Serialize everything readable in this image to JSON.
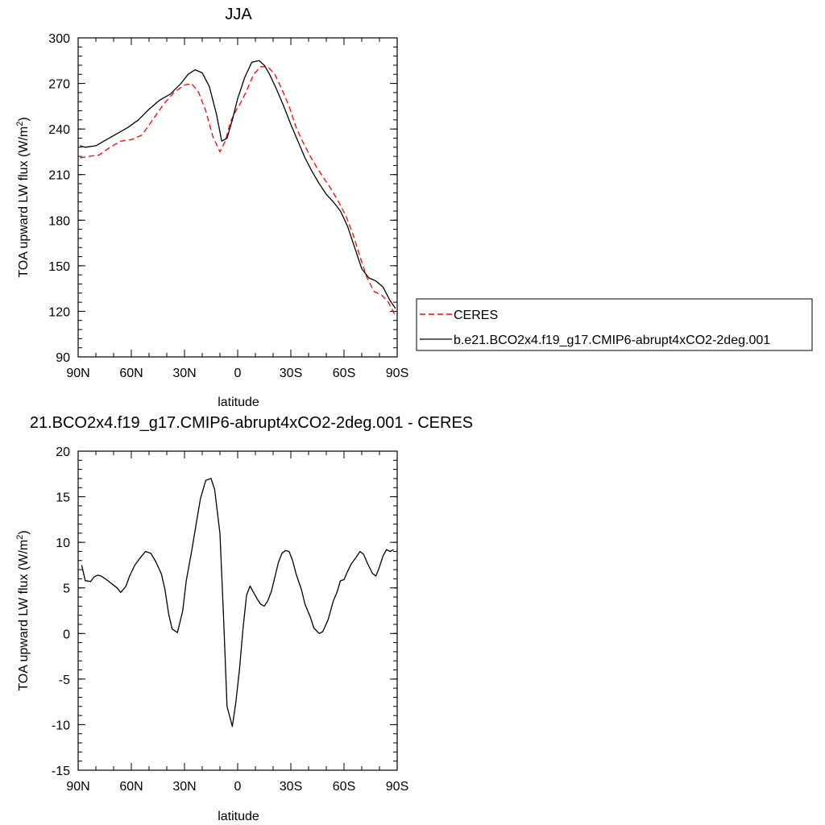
{
  "chart_data": [
    {
      "type": "line",
      "title": "JJA",
      "xlabel": "latitude",
      "ylabel_main": "TOA upward LW flux (W/m",
      "ylabel_sup": "2",
      "ylabel_tail": ")",
      "xlim": [
        90,
        -90
      ],
      "ylim": [
        90,
        300
      ],
      "x_ticks": [
        {
          "value": 90,
          "label": "90N"
        },
        {
          "value": 60,
          "label": "60N"
        },
        {
          "value": 30,
          "label": "30N"
        },
        {
          "value": 0,
          "label": "0"
        },
        {
          "value": -30,
          "label": "30S"
        },
        {
          "value": -60,
          "label": "60S"
        },
        {
          "value": -90,
          "label": "90S"
        }
      ],
      "y_ticks": [
        {
          "value": 90,
          "label": "90"
        },
        {
          "value": 120,
          "label": "120"
        },
        {
          "value": 150,
          "label": "150"
        },
        {
          "value": 180,
          "label": "180"
        },
        {
          "value": 210,
          "label": "210"
        },
        {
          "value": 240,
          "label": "240"
        },
        {
          "value": 270,
          "label": "270"
        },
        {
          "value": 300,
          "label": "300"
        }
      ],
      "legend_position": "right",
      "series": [
        {
          "name": "CERES",
          "color": "#ff0000",
          "style": "dashed",
          "x": [
            89,
            84,
            78,
            72,
            66,
            60,
            54,
            48,
            42,
            36,
            30,
            26,
            22,
            18,
            14,
            10,
            7,
            4,
            1,
            -2,
            -5,
            -9,
            -13,
            -17,
            -21,
            -25,
            -29,
            -33,
            -37,
            -41,
            -45,
            -49,
            -53,
            -57,
            -61,
            -65,
            -69,
            -73,
            -77,
            -81,
            -85,
            -89
          ],
          "y": [
            221,
            222,
            223,
            228,
            232,
            233,
            236,
            246,
            256,
            264,
            269,
            270,
            264,
            252,
            235,
            225,
            232,
            245,
            252,
            258,
            265,
            276,
            281,
            281,
            276,
            266,
            255,
            241,
            231,
            222,
            214,
            207,
            200,
            192,
            183,
            171,
            156,
            142,
            133,
            131,
            126,
            117
          ]
        },
        {
          "name": "b.e21.BCO2x4.f19_g17.CMIP6-abrupt4xCO2-2deg.001",
          "color": "#000000",
          "style": "solid",
          "x": [
            89,
            86,
            80,
            74,
            68,
            62,
            56,
            50,
            44,
            38,
            32,
            28,
            24,
            20,
            16,
            12,
            9,
            6,
            3,
            0,
            -4,
            -8,
            -12,
            -15,
            -18,
            -22,
            -26,
            -30,
            -34,
            -38,
            -42,
            -46,
            -50,
            -54,
            -58,
            -62,
            -66,
            -70,
            -74,
            -78,
            -82,
            -86,
            -89
          ],
          "y": [
            229,
            228,
            229,
            233,
            237,
            241,
            246,
            253,
            259,
            263,
            270,
            276,
            279,
            277,
            268,
            250,
            232,
            234,
            246,
            260,
            274,
            284,
            285,
            282,
            276,
            266,
            255,
            243,
            232,
            221,
            212,
            204,
            197,
            192,
            186,
            176,
            162,
            148,
            142,
            140,
            136,
            127,
            122
          ]
        }
      ]
    },
    {
      "type": "line",
      "title": "21.BCO2x4.f19_g17.CMIP6-abrupt4xCO2-2deg.001 - CERES",
      "xlabel": "latitude",
      "ylabel_main": "TOA upward LW flux (W/m",
      "ylabel_sup": "2",
      "ylabel_tail": ")",
      "xlim": [
        90,
        -90
      ],
      "ylim": [
        -15,
        20
      ],
      "x_ticks": [
        {
          "value": 90,
          "label": "90N"
        },
        {
          "value": 60,
          "label": "60N"
        },
        {
          "value": 30,
          "label": "30N"
        },
        {
          "value": 0,
          "label": "0"
        },
        {
          "value": -30,
          "label": "30S"
        },
        {
          "value": -60,
          "label": "60S"
        },
        {
          "value": -90,
          "label": "90S"
        }
      ],
      "y_ticks": [
        {
          "value": -15,
          "label": "-15"
        },
        {
          "value": -10,
          "label": "-10"
        },
        {
          "value": -5,
          "label": "-5"
        },
        {
          "value": 0,
          "label": "0"
        },
        {
          "value": 5,
          "label": "5"
        },
        {
          "value": 10,
          "label": "10"
        },
        {
          "value": 15,
          "label": "15"
        },
        {
          "value": 20,
          "label": "20"
        }
      ],
      "series": [
        {
          "name": "",
          "color": "#000000",
          "style": "solid",
          "x": [
            88,
            86,
            83,
            81,
            79,
            77,
            74,
            72,
            70,
            68,
            66,
            63,
            61,
            58,
            55,
            52,
            49,
            46,
            43,
            41,
            39,
            37,
            34,
            31,
            29,
            26,
            23,
            21,
            18,
            15,
            13,
            10,
            8,
            6,
            3,
            1,
            -1,
            -3,
            -5,
            -7,
            -9,
            -11,
            -13,
            -15,
            -17,
            -19,
            -21,
            -23,
            -25,
            -27,
            -29,
            -31,
            -33,
            -36,
            -38,
            -41,
            -43,
            -46,
            -48,
            -51,
            -54,
            -56,
            -58,
            -60,
            -62,
            -64,
            -67,
            -69,
            -71,
            -73,
            -76,
            -78,
            -80,
            -82,
            -84,
            -86,
            -88
          ],
          "y": [
            7.5,
            5.8,
            5.7,
            6.2,
            6.4,
            6.3,
            5.9,
            5.6,
            5.3,
            5.0,
            4.5,
            5.2,
            6.3,
            7.5,
            8.3,
            9.0,
            8.8,
            7.8,
            6.5,
            4.8,
            2.2,
            0.5,
            0.1,
            2.5,
            5.8,
            9.0,
            12.5,
            14.8,
            16.8,
            17.0,
            15.8,
            11.0,
            2.0,
            -8.0,
            -10.2,
            -7.5,
            -4.0,
            0.5,
            4.2,
            5.2,
            4.5,
            3.8,
            3.2,
            3.0,
            3.6,
            4.6,
            6.2,
            7.8,
            8.8,
            9.1,
            9.0,
            8.0,
            6.5,
            4.8,
            3.2,
            1.8,
            0.6,
            0.0,
            0.2,
            1.5,
            3.6,
            4.5,
            5.8,
            5.9,
            6.8,
            7.6,
            8.4,
            9.0,
            8.7,
            7.8,
            6.6,
            6.3,
            7.3,
            8.5,
            9.2,
            9.0,
            9.2
          ]
        }
      ]
    }
  ]
}
